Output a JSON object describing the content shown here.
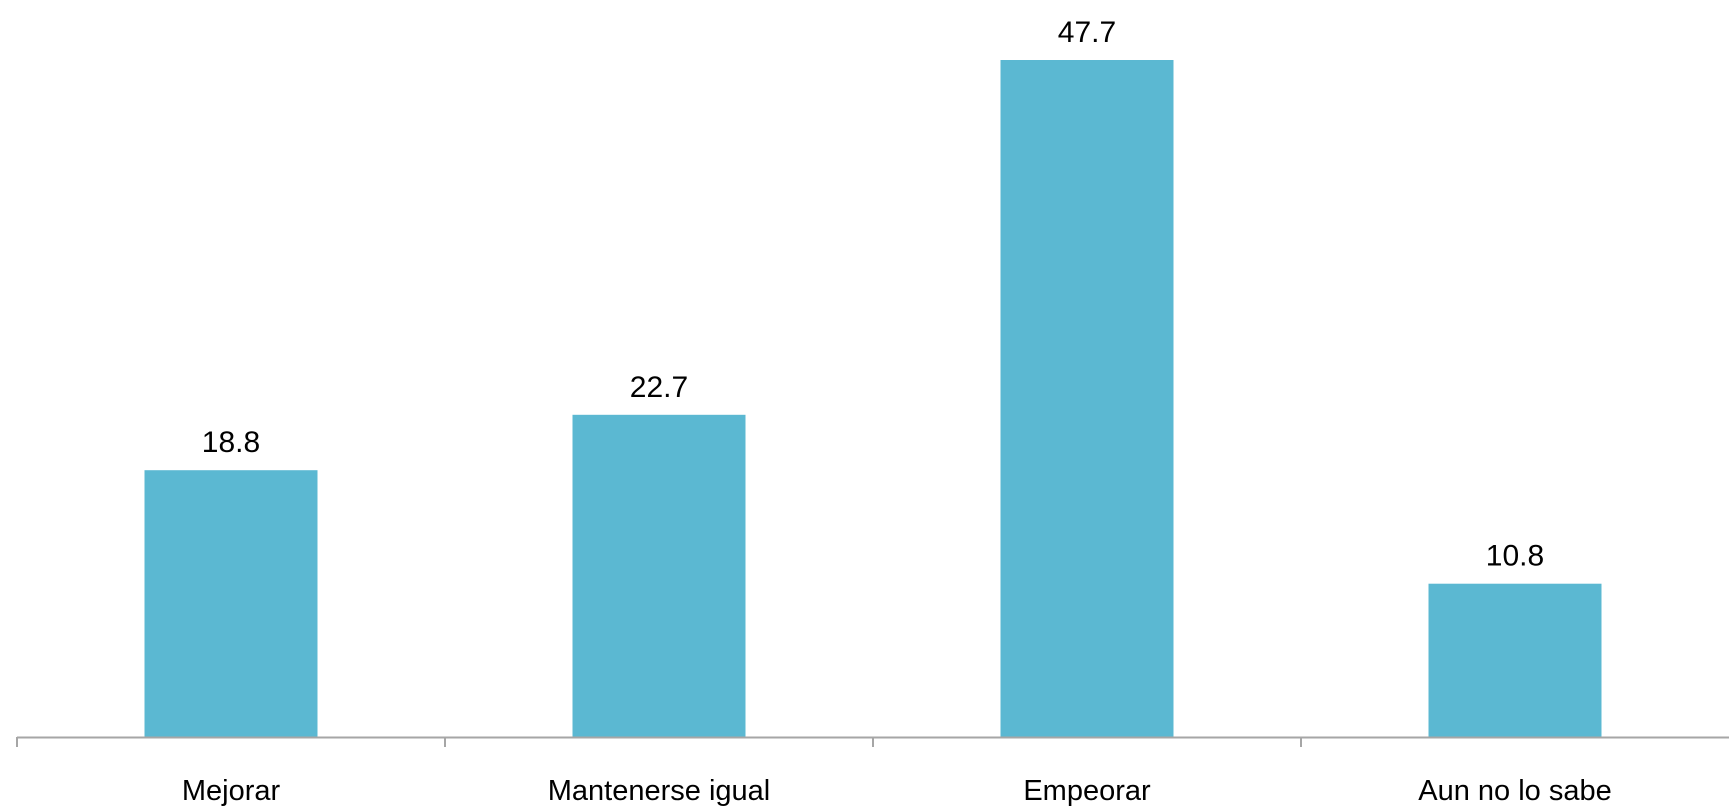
{
  "chart_data": {
    "type": "bar",
    "categories": [
      "Mejorar",
      "Mantenerse igual",
      "Empeorar",
      "Aun no lo sabe"
    ],
    "values": [
      18.8,
      22.7,
      47.7,
      10.8
    ],
    "value_labels": [
      "18.8",
      "22.7",
      "47.7",
      "10.8"
    ],
    "title": "",
    "xlabel": "",
    "ylabel": "",
    "ylim": [
      0,
      47.7
    ],
    "grid": false,
    "legend": "none",
    "bar_color": "#5bb8d2",
    "axis_color": "#a6a6a6"
  }
}
